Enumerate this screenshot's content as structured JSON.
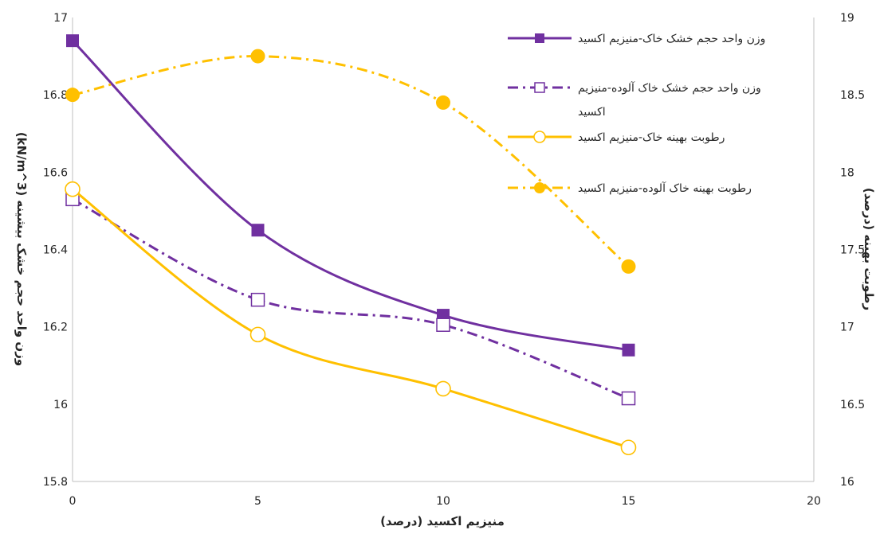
{
  "chart_data": {
    "type": "scatter",
    "x": [
      0,
      5,
      10,
      15
    ],
    "xlabel": "منیزیم اکسید (درصد)",
    "ylabel_left": "وزن واحد حجم خشک بیشینه (kN/m^3)",
    "ylabel_right": "رطوبت بهینه (درصد)",
    "xlim": [
      0,
      20
    ],
    "xticks": [
      "0",
      "5",
      "10",
      "15",
      "20"
    ],
    "ylim_left": [
      15.8,
      17
    ],
    "yticks_left": [
      "15.8",
      "16",
      "16.2",
      "16.4",
      "16.6",
      "16.8",
      "17"
    ],
    "ylim_right": [
      16,
      19
    ],
    "yticks_right": [
      "16",
      "16.5",
      "17",
      "17.5",
      "18",
      "18.5",
      "19"
    ],
    "grid": false,
    "legend_position": "top-right",
    "series": [
      {
        "name": "وزن واحد حجم خشک خاک-منیزیم اکسید",
        "axis": "left",
        "values": [
          16.94,
          16.45,
          16.23,
          16.14
        ],
        "color": "#7030a0",
        "line": "solid",
        "marker": "filled-square"
      },
      {
        "name_lines": [
          "وزن واحد حجم خشک خاک آلوده-منیزیم",
          "اکسید"
        ],
        "axis": "left",
        "values": [
          16.53,
          16.27,
          16.205,
          16.015
        ],
        "color": "#7030a0",
        "line": "dashdot",
        "marker": "open-square"
      },
      {
        "name": "رطوبت بهینه خاک-منیزیم اکسید",
        "axis": "right",
        "values": [
          17.89,
          16.95,
          16.6,
          16.22
        ],
        "color": "#ffc000",
        "line": "solid",
        "marker": "open-circle"
      },
      {
        "name": "رطوبت بهینه خاک آلوده-منیزیم اکسید",
        "axis": "right",
        "values": [
          18.5,
          18.75,
          18.45,
          17.39
        ],
        "color": "#ffc000",
        "line": "dashdot",
        "marker": "filled-circle"
      }
    ]
  }
}
